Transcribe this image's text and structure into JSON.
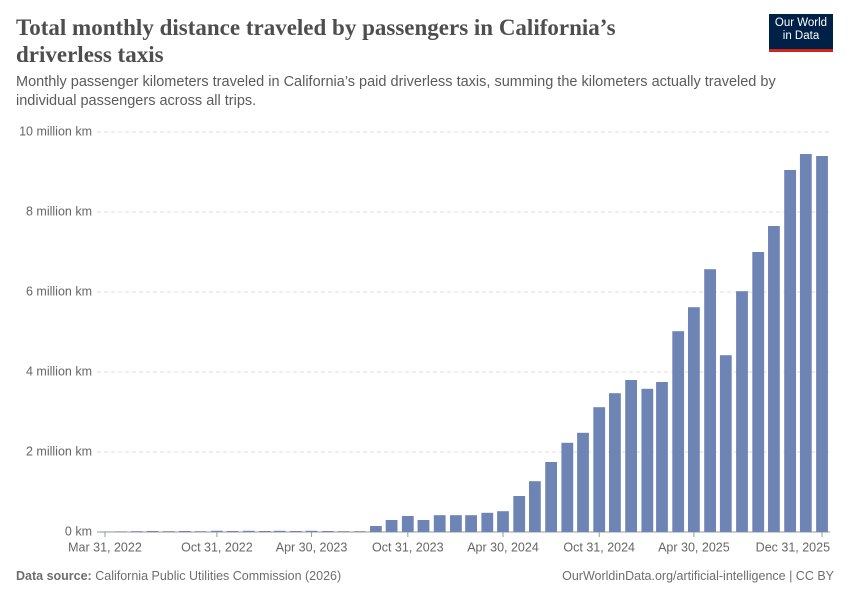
{
  "chart_data": {
    "type": "bar",
    "title": "Total monthly distance traveled by passengers in California’s driverless taxis",
    "subtitle": "Monthly passenger kilometers traveled in California’s paid driverless taxis, summing the kilometers actually traveled by individual passengers across all trips.",
    "logo": "Our World in Data",
    "source_label": "Data source:",
    "source": "California Public Utilities Commission (2026)",
    "url": "OurWorldinData.org/artificial-intelligence | CC BY",
    "color": "#6d84b4",
    "grid": true,
    "x": [
      "2022-03-31",
      "2022-04-30",
      "2022-05-31",
      "2022-06-30",
      "2022-07-31",
      "2022-08-31",
      "2022-09-30",
      "2022-10-31",
      "2022-11-30",
      "2022-12-31",
      "2023-01-31",
      "2023-02-28",
      "2023-03-31",
      "2023-04-30",
      "2023-05-31",
      "2023-06-30",
      "2023-07-31",
      "2023-08-31",
      "2023-09-30",
      "2023-10-31",
      "2023-11-30",
      "2023-12-31",
      "2024-01-31",
      "2024-02-29",
      "2024-03-31",
      "2024-04-30",
      "2024-05-31",
      "2024-06-30",
      "2024-07-31",
      "2024-08-31",
      "2024-09-30",
      "2024-10-31",
      "2024-11-30",
      "2024-12-31",
      "2025-01-31",
      "2025-02-28",
      "2025-03-31",
      "2025-04-30",
      "2025-05-31",
      "2025-06-30",
      "2025-07-31",
      "2025-08-31",
      "2025-09-30",
      "2025-10-31",
      "2025-11-30",
      "2025-12-31"
    ],
    "values": [
      10000,
      15000,
      20000,
      25000,
      20000,
      25000,
      20000,
      30000,
      25000,
      30000,
      25000,
      30000,
      25000,
      30000,
      25000,
      20000,
      20000,
      150000,
      300000,
      400000,
      300000,
      420000,
      420000,
      420000,
      480000,
      520000,
      900000,
      1270000,
      1750000,
      2230000,
      2480000,
      3120000,
      3470000,
      3800000,
      3580000,
      3750000,
      5020000,
      5620000,
      6570000,
      4420000,
      6020000,
      7000000,
      7650000,
      9050000,
      9450000,
      9400000
    ],
    "ylim": [
      0,
      10000000
    ],
    "yticks": [
      {
        "value": 0,
        "label": "0 km"
      },
      {
        "value": 2000000,
        "label": "2 million km"
      },
      {
        "value": 4000000,
        "label": "4 million km"
      },
      {
        "value": 6000000,
        "label": "6 million km"
      },
      {
        "value": 8000000,
        "label": "8 million km"
      },
      {
        "value": 10000000,
        "label": "10 million km"
      }
    ],
    "xticks": [
      {
        "value": "2022-03-31",
        "label": "Mar 31, 2022"
      },
      {
        "value": "2022-10-31",
        "label": "Oct 31, 2022"
      },
      {
        "value": "2023-04-30",
        "label": "Apr 30, 2023"
      },
      {
        "value": "2023-10-31",
        "label": "Oct 31, 2023"
      },
      {
        "value": "2024-04-30",
        "label": "Apr 30, 2024"
      },
      {
        "value": "2024-10-31",
        "label": "Oct 31, 2024"
      },
      {
        "value": "2025-04-30",
        "label": "Apr 30, 2025"
      },
      {
        "value": "2025-12-31",
        "label": "Dec 31, 2025"
      }
    ]
  }
}
